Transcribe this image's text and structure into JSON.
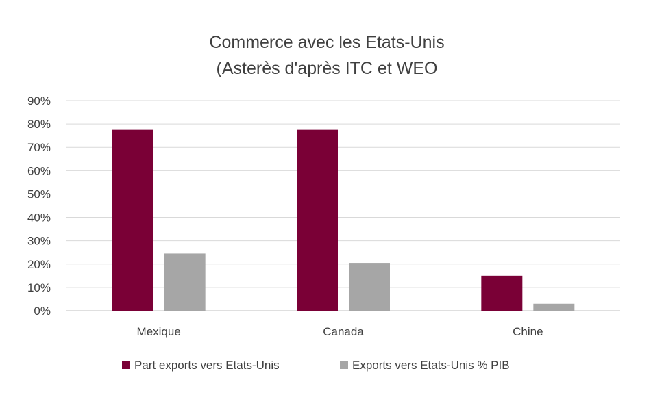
{
  "chart_data": {
    "type": "bar",
    "title": [
      "Commerce avec les Etats-Unis",
      "(Asterès d'après ITC et WEO"
    ],
    "xlabel": "",
    "ylabel": "",
    "categories": [
      "Mexique",
      "Canada",
      "Chine"
    ],
    "ylim": [
      0,
      90
    ],
    "y_ticks": [
      "0%",
      "10%",
      "20%",
      "30%",
      "40%",
      "50%",
      "60%",
      "70%",
      "80%",
      "90%"
    ],
    "y_tick_values": [
      0,
      10,
      20,
      30,
      40,
      50,
      60,
      70,
      80,
      90
    ],
    "grid": true,
    "legend_position": "bottom",
    "series": [
      {
        "name": "Part exports vers Etats-Unis",
        "values": [
          77.5,
          77.5,
          15
        ],
        "color": "#7a0036"
      },
      {
        "name": "Exports vers Etats-Unis % PIB",
        "values": [
          24.5,
          20.5,
          3
        ],
        "color": "#a6a6a6"
      }
    ]
  }
}
